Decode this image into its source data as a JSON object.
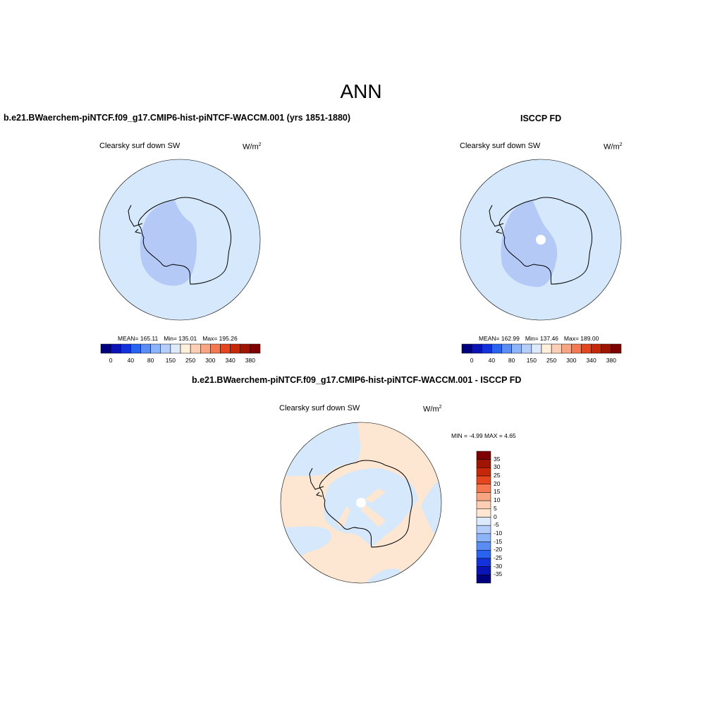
{
  "header": {
    "title": "ANN"
  },
  "panels": [
    {
      "title": "b.e21.BWaerchem-piNTCF.f09_g17.CMIP6-hist-piNTCF-WACCM.001 (yrs 1851-1880)",
      "variable": "Clearsky surf down SW",
      "units_base": "W/m",
      "units_exp": "2",
      "stats": {
        "mean": "MEAN= 165.11",
        "min": "Min= 135.01",
        "max": "Max= 195.26"
      }
    },
    {
      "title": "ISCCP FD",
      "variable": "Clearsky surf down SW",
      "units_base": "W/m",
      "units_exp": "2",
      "stats": {
        "mean": "MEAN= 162.99",
        "min": "Min= 137.46",
        "max": "Max= 189.00"
      }
    },
    {
      "title": "b.e21.BWaerchem-piNTCF.f09_g17.CMIP6-hist-piNTCF-WACCM.001 - ISCCP FD",
      "variable": "Clearsky surf down SW",
      "units_base": "W/m",
      "units_exp": "2",
      "stats": {
        "minmax": "MIN =  -4.99 MAX =   4.65"
      }
    }
  ],
  "colorbar_main": {
    "colors": [
      "#00007f",
      "#0a14b4",
      "#1432dc",
      "#2864f0",
      "#5a8cf5",
      "#8cb4fa",
      "#b4cdfa",
      "#dceafc",
      "#fff0dc",
      "#fccfb4",
      "#faa582",
      "#f57850",
      "#e6461e",
      "#c8280a",
      "#a01400",
      "#7f0000"
    ],
    "labels": [
      "0",
      "40",
      "80",
      "150",
      "250",
      "300",
      "340",
      "380"
    ]
  },
  "colorbar_diff": {
    "colors": [
      "#7f0000",
      "#a01400",
      "#c8280a",
      "#e6461e",
      "#f57850",
      "#faa582",
      "#fccfb4",
      "#fde6d2",
      "#dceafc",
      "#b4cdfa",
      "#8cb4fa",
      "#5a8cf5",
      "#2864f0",
      "#1432dc",
      "#0a14b4",
      "#00007f"
    ],
    "labels": [
      "35",
      "30",
      "25",
      "20",
      "15",
      "10",
      "5",
      "0",
      "-5",
      "-10",
      "-15",
      "-20",
      "-25",
      "-30",
      "-35"
    ]
  },
  "map_colors": {
    "ocean_light": "#d6e8fb",
    "interior": "#b4c9f6",
    "diff_pos": "#fde6d2",
    "diff_neg": "#d6e8fb"
  }
}
